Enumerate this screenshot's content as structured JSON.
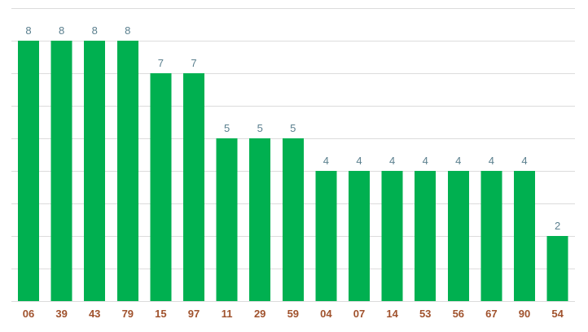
{
  "chart_data": {
    "type": "bar",
    "categories": [
      "06",
      "39",
      "43",
      "79",
      "15",
      "97",
      "11",
      "29",
      "59",
      "04",
      "07",
      "14",
      "53",
      "56",
      "67",
      "90",
      "54"
    ],
    "values": [
      8,
      8,
      8,
      8,
      7,
      7,
      5,
      5,
      5,
      4,
      4,
      4,
      4,
      4,
      4,
      4,
      2
    ],
    "ylim": [
      0,
      9
    ],
    "grid": true,
    "legend": "none",
    "data_labels": true,
    "colors": {
      "bar": "#00b050",
      "grid": "#dcdcdc",
      "value_label": "#5a7f8e",
      "category_label": "#a0522d"
    }
  }
}
